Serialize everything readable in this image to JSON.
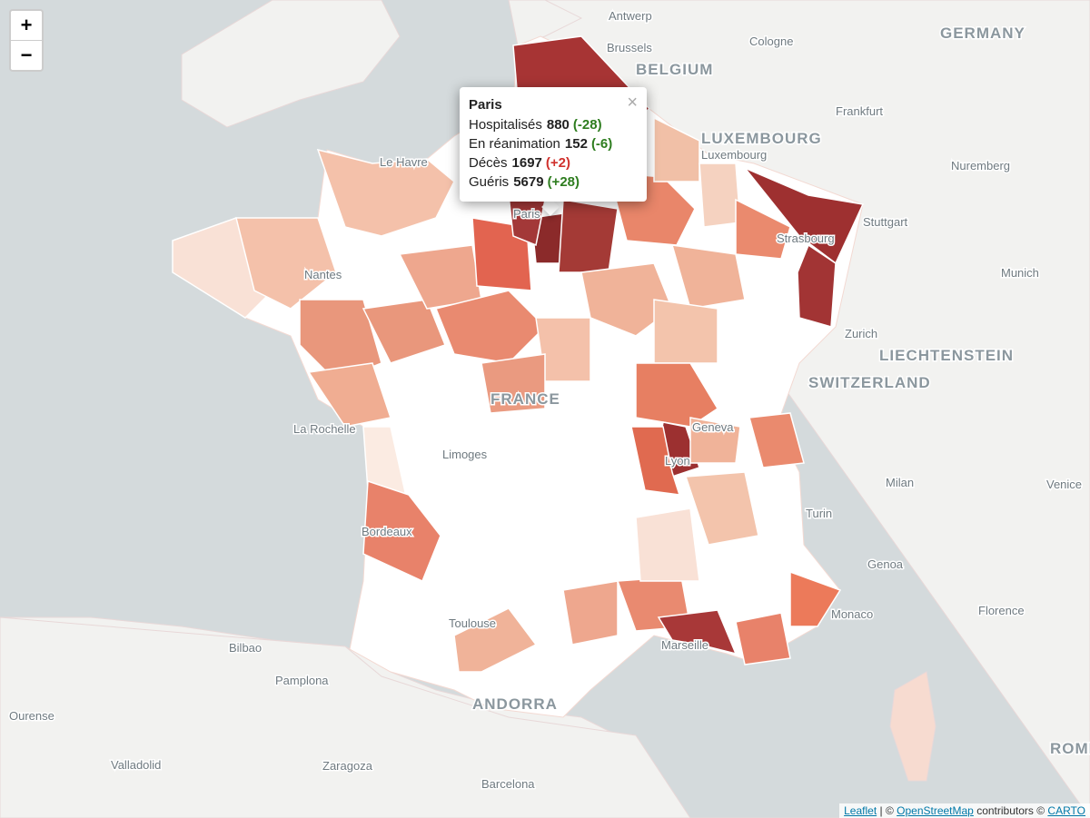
{
  "map_labels": [
    "Antwerp",
    "Brussels",
    "BELGIUM",
    "Cologne",
    "GERMANY",
    "Frankfurt",
    "LUXEMBOURG",
    "Luxembourg",
    "Nuremberg",
    "Le Havre",
    "Stuttgart",
    "Strasbourg",
    "Munich",
    "Zurich",
    "LIECHTENSTEIN",
    "SWITZERLAND",
    "FRANCE",
    "La Rochelle",
    "Limoges",
    "Geneva",
    "Lyon",
    "Milan",
    "Venice",
    "Bordeaux",
    "Turin",
    "Genoa",
    "Toulouse",
    "Monaco",
    "Florence",
    "Marseille",
    "Bilbao",
    "Pamplona",
    "ANDORRA",
    "Ourense",
    "Valladolid",
    "Zaragoza",
    "Barcelona",
    "ROME",
    "Nantes",
    "Paris"
  ],
  "zoom": {
    "in": "+",
    "out": "−"
  },
  "popup": {
    "title": "Paris",
    "close": "×",
    "rows": [
      {
        "label": "Hospitalisés",
        "value": 880,
        "change": "(-28)",
        "change_color": "#2e7d1f"
      },
      {
        "label": "En réanimation",
        "value": 152,
        "change": "(-6)",
        "change_color": "#2e7d1f"
      },
      {
        "label": "Décès",
        "value": 1697,
        "change": "(+2)",
        "change_color": "#d0312d"
      },
      {
        "label": "Guéris",
        "value": 5679,
        "change": "(+28)",
        "change_color": "#2e7d1f"
      }
    ]
  },
  "attribution": {
    "leaflet": "Leaflet",
    "sep1": "| ©",
    "osm": "OpenStreetMap",
    "sep2": "contributors ©",
    "carto": "CARTO"
  }
}
